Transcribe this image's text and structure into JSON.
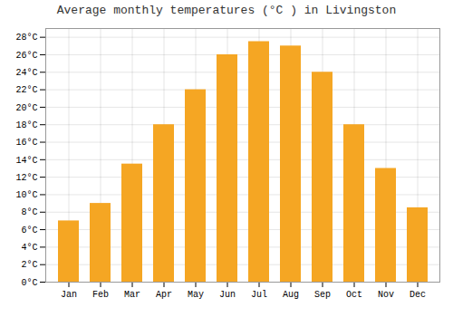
{
  "chart_data": {
    "type": "bar",
    "title": "Average monthly temperatures (°C ) in Livingston",
    "categories": [
      "Jan",
      "Feb",
      "Mar",
      "Apr",
      "May",
      "Jun",
      "Jul",
      "Aug",
      "Sep",
      "Oct",
      "Nov",
      "Dec"
    ],
    "values": [
      7,
      9,
      13.5,
      18,
      22,
      26,
      27.5,
      27,
      24,
      18,
      13,
      8.5
    ],
    "color": "#F5A623",
    "ylim": [
      0,
      29
    ],
    "yticks": [
      {
        "value": 0,
        "label": "0°C"
      },
      {
        "value": 2,
        "label": "2°C"
      },
      {
        "value": 4,
        "label": "4°C"
      },
      {
        "value": 6,
        "label": "6°C"
      },
      {
        "value": 8,
        "label": "8°C"
      },
      {
        "value": 10,
        "label": "10°C"
      },
      {
        "value": 12,
        "label": "12°C"
      },
      {
        "value": 14,
        "label": "14°C"
      },
      {
        "value": 16,
        "label": "16°C"
      },
      {
        "value": 18,
        "label": "18°C"
      },
      {
        "value": 20,
        "label": "20°C"
      },
      {
        "value": 22,
        "label": "22°C"
      },
      {
        "value": 24,
        "label": "24°C"
      },
      {
        "value": 26,
        "label": "26°C"
      },
      {
        "value": 28,
        "label": "28°C"
      }
    ],
    "grid": true
  }
}
